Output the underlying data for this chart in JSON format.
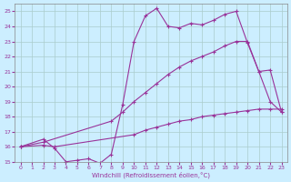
{
  "xlabel": "Windchill (Refroidissement éolien,°C)",
  "bg_color": "#cceeff",
  "grid_color": "#aacccc",
  "line_color": "#993399",
  "xlim": [
    -0.5,
    23.5
  ],
  "ylim": [
    15,
    25.5
  ],
  "yticks": [
    15,
    16,
    17,
    18,
    19,
    20,
    21,
    22,
    23,
    24,
    25
  ],
  "xticks": [
    0,
    1,
    2,
    3,
    4,
    5,
    6,
    7,
    8,
    9,
    10,
    11,
    12,
    13,
    14,
    15,
    16,
    17,
    18,
    19,
    20,
    21,
    22,
    23
  ],
  "line1_x": [
    0,
    2,
    3,
    4,
    5,
    6,
    7,
    8,
    9,
    10,
    11,
    12,
    13,
    14,
    15,
    16,
    17,
    18,
    19,
    20,
    21,
    22,
    23
  ],
  "line1_y": [
    16.0,
    16.5,
    15.9,
    15.0,
    15.1,
    15.2,
    14.9,
    15.5,
    18.8,
    23.0,
    24.7,
    25.2,
    24.0,
    23.9,
    24.2,
    24.1,
    24.4,
    24.8,
    25.0,
    22.9,
    21.0,
    19.0,
    18.3
  ],
  "line2_x": [
    0,
    2,
    8,
    9,
    10,
    11,
    12,
    13,
    14,
    15,
    16,
    17,
    18,
    19,
    20,
    21,
    22,
    23
  ],
  "line2_y": [
    16.0,
    16.3,
    17.7,
    18.3,
    19.0,
    19.6,
    20.2,
    20.8,
    21.3,
    21.7,
    22.0,
    22.3,
    22.7,
    23.0,
    23.0,
    21.0,
    21.1,
    18.3
  ],
  "line3_x": [
    0,
    2,
    3,
    10,
    11,
    12,
    13,
    14,
    15,
    16,
    17,
    18,
    19,
    20,
    21,
    22,
    23
  ],
  "line3_y": [
    16.0,
    16.1,
    16.0,
    16.8,
    17.1,
    17.3,
    17.5,
    17.7,
    17.8,
    18.0,
    18.1,
    18.2,
    18.3,
    18.4,
    18.5,
    18.5,
    18.5
  ]
}
